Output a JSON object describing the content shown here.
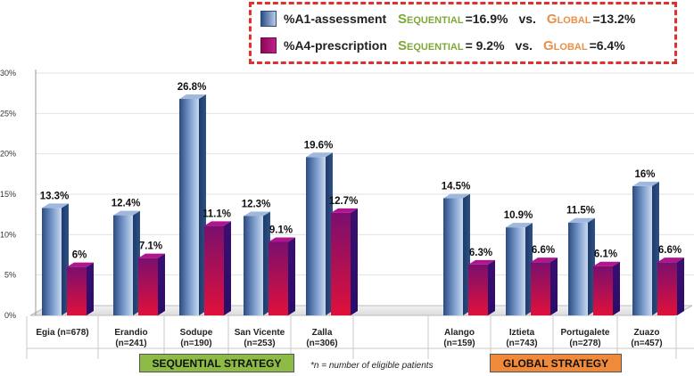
{
  "legend": {
    "series1_label": "%A1-assessment",
    "series2_label": "%A4-prescription",
    "sequential_word": "Sequential",
    "global_word": "Global",
    "vs": "vs.",
    "series1_seq_value": "=16.9%",
    "series1_glb_value": "=13.2%",
    "series2_seq_value": "= 9.2%",
    "series2_glb_value": "=6.4%"
  },
  "strategies": {
    "sequential": "SEQUENTIAL STRATEGY",
    "global": "GLOBAL STRATEGY"
  },
  "footnote": "*n = number of eligible patients",
  "colors": {
    "series1": "#4a6fa5",
    "series2": "#a0106e",
    "legend_border": "#e03030",
    "sequential_green": "#8dbb45",
    "global_orange": "#f08a3a"
  },
  "chart_data": {
    "type": "bar",
    "title": "",
    "xlabel": "",
    "ylabel": "",
    "ylim": [
      0,
      30
    ],
    "yticks": [
      "0%",
      "5%",
      "10%",
      "15%",
      "20%",
      "25%",
      "30%"
    ],
    "categories": [
      {
        "name": "Egia",
        "n": "(n=678)"
      },
      {
        "name": "Erandio",
        "n": "(n=241)"
      },
      {
        "name": "Sodupe",
        "n": "(n=190)"
      },
      {
        "name": "San Vicente",
        "n": "(n=253)"
      },
      {
        "name": "Zalla",
        "n": "(n=306)"
      },
      {
        "name": "",
        "n": ""
      },
      {
        "name": "Alango",
        "n": "(n=159)"
      },
      {
        "name": "Iztieta",
        "n": "(n=743)"
      },
      {
        "name": "Portugalete",
        "n": "(n=278)"
      },
      {
        "name": "Zuazo",
        "n": "(n=457)"
      }
    ],
    "series": [
      {
        "name": "%A1-assessment",
        "values": [
          13.3,
          12.4,
          26.8,
          12.3,
          19.6,
          null,
          14.5,
          10.9,
          11.5,
          16
        ],
        "labels": [
          "13.3%",
          "12.4%",
          "26.8%",
          "12.3%",
          "19.6%",
          "",
          "14.5%",
          "10.9%",
          "11.5%",
          "16%"
        ]
      },
      {
        "name": "%A4-prescription",
        "values": [
          6,
          7.1,
          11.1,
          9.1,
          12.7,
          null,
          6.3,
          6.6,
          6.1,
          6.6
        ],
        "labels": [
          "6%",
          "7.1%",
          "11.1%",
          "9.1%",
          "12.7%",
          "",
          "6.3%",
          "6.6%",
          "6.1%",
          "6.6%"
        ]
      }
    ]
  }
}
